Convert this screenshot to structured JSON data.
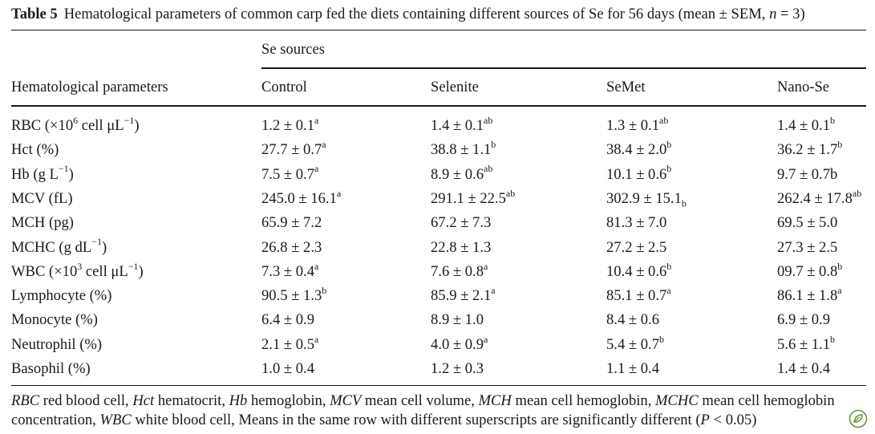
{
  "caption": {
    "label": "Table 5",
    "text": "Hematological parameters of common carp fed the diets containing different sources of Se for 56 days (mean ± SEM, n = 3)"
  },
  "header": {
    "group_label": "Se sources",
    "param_label": "Hematological parameters",
    "columns": [
      "Control",
      "Selenite",
      "SeMet",
      "Nano-Se"
    ]
  },
  "rows": [
    {
      "param": "RBC (×10^6 cell μL^−1)",
      "values": [
        "1.2 ± 0.1^a",
        "1.4 ± 0.1^ab",
        "1.3 ± 0.1^ab",
        "1.4 ± 0.1^b"
      ]
    },
    {
      "param": "Hct (%)",
      "values": [
        "27.7 ± 0.7^a",
        "38.8 ± 1.1^b",
        "38.4 ± 2.0^b",
        "36.2 ± 1.7^b"
      ]
    },
    {
      "param": "Hb (g L^−1)",
      "values": [
        "7.5 ± 0.7^a",
        "8.9 ± 0.6^ab",
        "10.1 ± 0.6^b",
        "9.7 ± 0.7b"
      ]
    },
    {
      "param": "MCV (fL)",
      "values": [
        "245.0 ± 16.1^a",
        "291.1 ± 22.5^ab",
        "302.9 ± 15.1_b",
        "262.4 ± 17.8^ab"
      ]
    },
    {
      "param": "MCH (pg)",
      "values": [
        "65.9 ± 7.2",
        "67.2 ± 7.3",
        "81.3 ± 7.0",
        "69.5 ± 5.0"
      ]
    },
    {
      "param": "MCHC (g dL^−1)",
      "values": [
        "26.8 ± 2.3",
        "22.8 ± 1.3",
        "27.2 ± 2.5",
        "27.3 ± 2.5"
      ]
    },
    {
      "param": "WBC (×10^3 cell μL^−1)",
      "values": [
        "7.3 ± 0.4^a",
        "7.6 ± 0.8^a",
        "10.4 ± 0.6^b",
        "09.7 ± 0.8^b"
      ]
    },
    {
      "param": "Lymphocyte (%)",
      "values": [
        "90.5 ± 1.3^b",
        "85.9 ± 2.1^a",
        "85.1 ± 0.7^a",
        "86.1 ± 1.8^a"
      ]
    },
    {
      "param": "Monocyte (%)",
      "values": [
        "6.4 ± 0.9",
        "8.9 ± 1.0",
        "8.4 ± 0.6",
        "6.9 ± 0.9"
      ]
    },
    {
      "param": "Neutrophil (%)",
      "values": [
        "2.1 ± 0.5^a",
        "4.0 ± 0.9^a",
        "5.4 ± 0.7^b",
        "5.6 ± 1.1^b"
      ]
    },
    {
      "param": "Basophil (%)",
      "values": [
        "1.0 ± 0.4",
        "1.2 ± 0.3",
        "1.1 ± 0.4",
        "1.4 ± 0.4"
      ]
    }
  ],
  "footnote": "RBC red blood cell, Hct hematocrit, Hb hemoglobin, MCV mean cell volume, MCH mean cell hemoglobin, MCHC mean cell hemoglobin concentration, WBC white blood cell, Means in the same row with different superscripts are significantly different (P < 0.05)",
  "footnote_italic_terms": [
    "RBC",
    "Hct",
    "Hb",
    "MCV",
    "MCH",
    "MCHC",
    "WBC",
    "P"
  ],
  "icons": {
    "badge": "springer-leaf-icon"
  },
  "colors": {
    "text": "#1a1a1a",
    "badge": "#6a8f3a"
  }
}
